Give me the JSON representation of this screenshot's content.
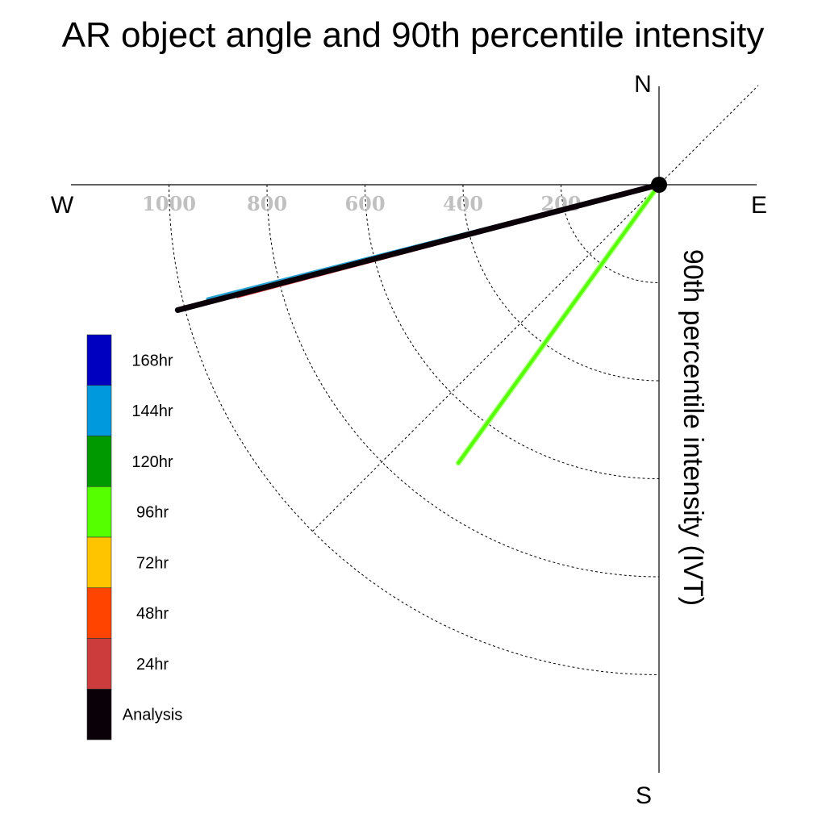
{
  "chart_data": {
    "type": "polar-vector",
    "title": "AR object angle and 90th percentile intensity",
    "ylabel": "90th percentile intensity (IVT)",
    "compass": {
      "north": "N",
      "south": "S",
      "east": "E",
      "west": "W"
    },
    "radial_ticks": [
      "200",
      "400",
      "600",
      "800",
      "1000"
    ],
    "radial_values": [
      200,
      400,
      600,
      800,
      1000
    ],
    "rmax": 1000,
    "diagonal": true,
    "legend": [
      {
        "label": "168hr",
        "color": "#0000c0"
      },
      {
        "label": "144hr",
        "color": "#0099dd"
      },
      {
        "label": "120hr",
        "color": "#009900"
      },
      {
        "label": "96hr",
        "color": "#55ff00"
      },
      {
        "label": "72hr",
        "color": "#ffc400"
      },
      {
        "label": "48hr",
        "color": "#ff4400"
      },
      {
        "label": "24hr",
        "color": "#cc3c3c"
      },
      {
        "label": "Analysis",
        "color": "#0a0008"
      }
    ],
    "series": [
      {
        "name": "144hr",
        "color": "#29a3d4",
        "intensity": 950,
        "angle_deg_below_west": 14.2,
        "width": 4
      },
      {
        "name": "24hr",
        "color": "#cc3c3c",
        "intensity": 890,
        "angle_deg_below_west": 14.8,
        "width": 5
      },
      {
        "name": "Analysis",
        "color": "#0a0008",
        "intensity": 1015,
        "angle_deg_below_west": 14.6,
        "width": 7
      },
      {
        "name": "96hr",
        "color": "#55ff00",
        "intensity": 700,
        "angle_deg_below_west": 54.2,
        "width": 4
      }
    ]
  }
}
